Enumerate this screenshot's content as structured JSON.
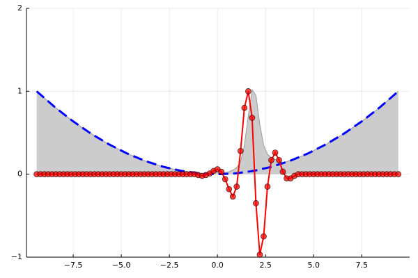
{
  "chart_data": {
    "type": "line",
    "xlim": [
      -9.93,
      9.99
    ],
    "ylim": [
      -1,
      2
    ],
    "xticks": [
      {
        "value": -7.5,
        "label": "−7.5"
      },
      {
        "value": -5,
        "label": "−5.0"
      },
      {
        "value": -2.5,
        "label": "−2.5"
      },
      {
        "value": 0,
        "label": "0.0"
      },
      {
        "value": 2.5,
        "label": "2.5"
      },
      {
        "value": 5,
        "label": "5.0"
      },
      {
        "value": 7.5,
        "label": "7.5"
      }
    ],
    "yticks": [
      {
        "value": -1,
        "label": "−1"
      },
      0,
      1,
      2
    ],
    "grid": true,
    "legend": false,
    "series": [
      {
        "style": "area",
        "color": "#999999",
        "fill": "#cccccc",
        "x": [
          -9.4,
          -8.46,
          -7.52,
          -6.58,
          -5.64,
          -4.7,
          -3.76,
          -2.82,
          -1.88,
          -1.2,
          -1,
          -0.8,
          -0.6,
          -0.4,
          -0.2,
          0,
          0.2,
          0.4,
          0.6,
          0.8,
          1,
          1.2,
          1.4,
          1.6,
          1.8,
          2,
          2.2,
          2.4,
          2.6,
          2.8,
          3,
          3.2,
          3.4,
          3.6,
          3.8,
          4,
          4.2,
          4.7,
          5.64,
          6.58,
          7.52,
          8.46,
          9.4
        ],
        "values": [
          1,
          0.81,
          0.64,
          0.49,
          0.36,
          0.25,
          0.16,
          0.09,
          0.04,
          0.02,
          0.01,
          0.01,
          0.01,
          0.01,
          0.02,
          0.03,
          0.02,
          0.02,
          0.03,
          0.05,
          0.08,
          0.15,
          0.35,
          0.7,
          1.02,
          0.95,
          0.6,
          0.35,
          0.24,
          0.2,
          0.18,
          0.16,
          0.14,
          0.15,
          0.17,
          0.18,
          0.2,
          0.25,
          0.36,
          0.49,
          0.64,
          0.81,
          1
        ]
      },
      {
        "style": "dashed",
        "color": "#0000ff",
        "x": [
          -9.4,
          -8.46,
          -7.52,
          -6.58,
          -5.64,
          -4.7,
          -3.76,
          -2.82,
          -1.88,
          -0.94,
          0,
          0.94,
          1.88,
          2.82,
          3.76,
          4.7,
          5.64,
          6.58,
          7.52,
          8.46,
          9.4
        ],
        "values": [
          1,
          0.81,
          0.64,
          0.49,
          0.36,
          0.25,
          0.16,
          0.09,
          0.04,
          0.01,
          0,
          0.01,
          0.04,
          0.09,
          0.16,
          0.25,
          0.36,
          0.49,
          0.64,
          0.81,
          1
        ]
      },
      {
        "style": "markers",
        "color": "#ff0000",
        "x": [
          -9.4,
          -9.2,
          -9,
          -8.8,
          -8.6,
          -8.4,
          -8.2,
          -8,
          -7.8,
          -7.6,
          -7.4,
          -7.2,
          -7,
          -6.8,
          -6.6,
          -6.4,
          -6.2,
          -6,
          -5.8,
          -5.6,
          -5.4,
          -5.2,
          -5,
          -4.8,
          -4.6,
          -4.4,
          -4.2,
          -4,
          -3.8,
          -3.6,
          -3.4,
          -3.2,
          -3,
          -2.8,
          -2.6,
          -2.4,
          -2.2,
          -2,
          -1.8,
          -1.6,
          -1.4,
          -1.2,
          -1,
          -0.8,
          -0.6,
          -0.4,
          -0.2,
          0,
          0.2,
          0.4,
          0.6,
          0.8,
          1,
          1.2,
          1.4,
          1.6,
          1.8,
          2,
          2.2,
          2.4,
          2.6,
          2.8,
          3,
          3.2,
          3.4,
          3.6,
          3.8,
          4,
          4.2,
          4.4,
          4.6,
          4.8,
          5,
          5.2,
          5.4,
          5.6,
          5.8,
          6,
          6.2,
          6.4,
          6.6,
          6.8,
          7,
          7.2,
          7.4,
          7.6,
          7.8,
          8,
          8.2,
          8.4,
          8.6,
          8.8,
          9,
          9.2,
          9.4
        ],
        "values": [
          0,
          0,
          0,
          0,
          0,
          0,
          0,
          0,
          0,
          0,
          0,
          0,
          0,
          0,
          0,
          0,
          0,
          0,
          0,
          0,
          0,
          0,
          0,
          0,
          0,
          0,
          0,
          0,
          0,
          0,
          0,
          0,
          0,
          0,
          0,
          0,
          0,
          0,
          0,
          0,
          0,
          0,
          -0.01,
          -0.02,
          -0.01,
          0.01,
          0.04,
          0.06,
          0.03,
          -0.06,
          -0.18,
          -0.27,
          -0.15,
          0.28,
          0.8,
          1,
          0.68,
          -0.35,
          -0.97,
          -0.75,
          -0.15,
          0.17,
          0.26,
          0.17,
          0.03,
          -0.05,
          -0.05,
          -0.02,
          0,
          0,
          0,
          0,
          0,
          0,
          0,
          0,
          0,
          0,
          0,
          0,
          0,
          0,
          0,
          0,
          0,
          0,
          0,
          0,
          0,
          0,
          0,
          0,
          0,
          0,
          0
        ]
      }
    ]
  }
}
